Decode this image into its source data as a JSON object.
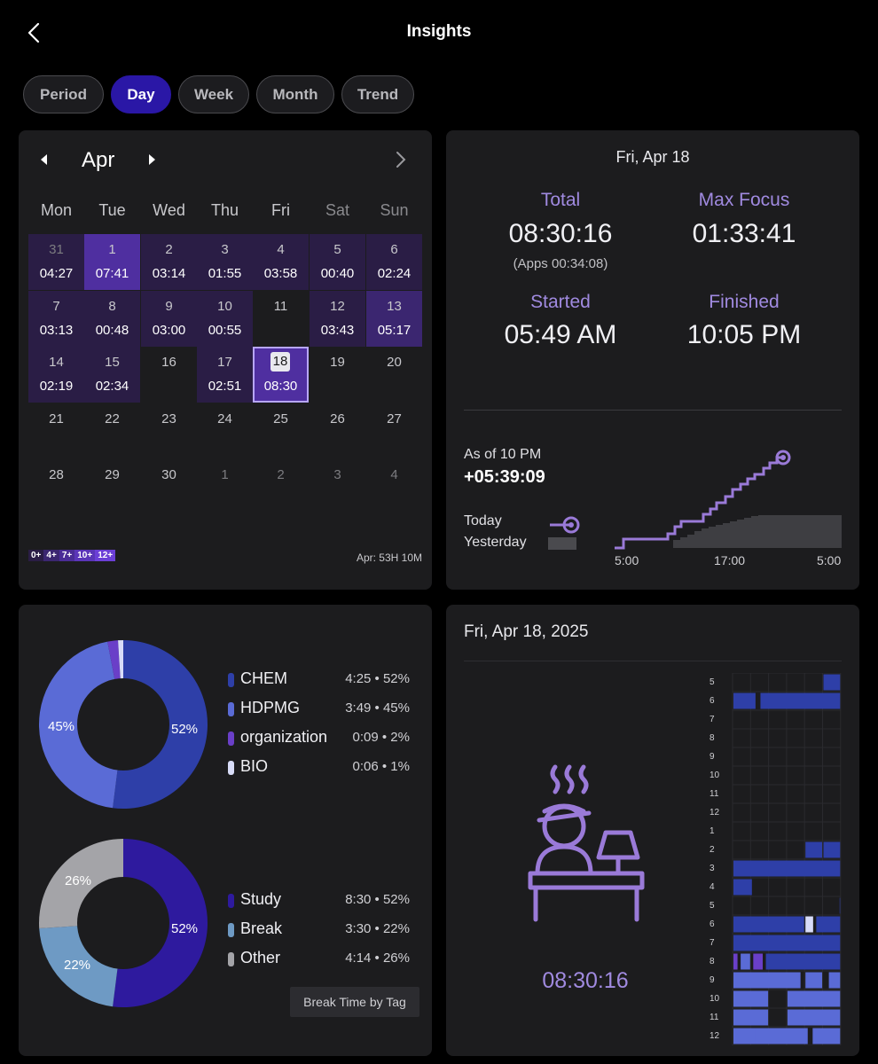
{
  "header": {
    "title": "Insights",
    "back_icon": "chevron-left-icon"
  },
  "tabs": [
    {
      "label": "Period",
      "active": false
    },
    {
      "label": "Day",
      "active": true
    },
    {
      "label": "Week",
      "active": false
    },
    {
      "label": "Month",
      "active": false
    },
    {
      "label": "Trend",
      "active": false
    }
  ],
  "calendar": {
    "month": "Apr",
    "weekdays": [
      "Mon",
      "Tue",
      "Wed",
      "Thu",
      "Fri",
      "Sat",
      "Sun"
    ],
    "days": [
      {
        "d": "31",
        "t": "04:27",
        "lvl": 1,
        "dim": true
      },
      {
        "d": "1",
        "t": "07:41",
        "lvl": 3
      },
      {
        "d": "2",
        "t": "03:14",
        "lvl": 1
      },
      {
        "d": "3",
        "t": "01:55",
        "lvl": 1
      },
      {
        "d": "4",
        "t": "03:58",
        "lvl": 1
      },
      {
        "d": "5",
        "t": "00:40",
        "lvl": 1
      },
      {
        "d": "6",
        "t": "02:24",
        "lvl": 1
      },
      {
        "d": "7",
        "t": "03:13",
        "lvl": 1
      },
      {
        "d": "8",
        "t": "00:48",
        "lvl": 1
      },
      {
        "d": "9",
        "t": "03:00",
        "lvl": 1
      },
      {
        "d": "10",
        "t": "00:55",
        "lvl": 1
      },
      {
        "d": "11",
        "t": "",
        "lvl": 0
      },
      {
        "d": "12",
        "t": "03:43",
        "lvl": 1
      },
      {
        "d": "13",
        "t": "05:17",
        "lvl": 2
      },
      {
        "d": "14",
        "t": "02:19",
        "lvl": 1
      },
      {
        "d": "15",
        "t": "02:34",
        "lvl": 1
      },
      {
        "d": "16",
        "t": "",
        "lvl": 0
      },
      {
        "d": "17",
        "t": "02:51",
        "lvl": 1
      },
      {
        "d": "18",
        "t": "08:30",
        "lvl": 3,
        "selected": true
      },
      {
        "d": "19",
        "t": "",
        "lvl": 0
      },
      {
        "d": "20",
        "t": "",
        "lvl": 0
      },
      {
        "d": "21",
        "t": "",
        "lvl": 0
      },
      {
        "d": "22",
        "t": "",
        "lvl": 0
      },
      {
        "d": "23",
        "t": "",
        "lvl": 0
      },
      {
        "d": "24",
        "t": "",
        "lvl": 0
      },
      {
        "d": "25",
        "t": "",
        "lvl": 0
      },
      {
        "d": "26",
        "t": "",
        "lvl": 0
      },
      {
        "d": "27",
        "t": "",
        "lvl": 0
      },
      {
        "d": "28",
        "t": "",
        "lvl": 0
      },
      {
        "d": "29",
        "t": "",
        "lvl": 0
      },
      {
        "d": "30",
        "t": "",
        "lvl": 0
      },
      {
        "d": "1",
        "t": "",
        "lvl": 0,
        "dim": true
      },
      {
        "d": "2",
        "t": "",
        "lvl": 0,
        "dim": true
      },
      {
        "d": "3",
        "t": "",
        "lvl": 0,
        "dim": true
      },
      {
        "d": "4",
        "t": "",
        "lvl": 0,
        "dim": true
      }
    ],
    "level_colors": [
      "transparent",
      "#2a1d45",
      "#3b2670",
      "#4f2fa0"
    ],
    "scale": [
      {
        "label": "0+",
        "color": "#2a1d45"
      },
      {
        "label": "4+",
        "color": "#3b2670"
      },
      {
        "label": "7+",
        "color": "#4a2c96"
      },
      {
        "label": "10+",
        "color": "#5a35b8"
      },
      {
        "label": "12+",
        "color": "#6b3fd6"
      }
    ],
    "month_total": "Apr: 53H 10M"
  },
  "summary": {
    "date": "Fri, Apr 18",
    "total_label": "Total",
    "total_value": "08:30:16",
    "apps_value": "(Apps 00:34:08)",
    "max_focus_label": "Max Focus",
    "max_focus_value": "01:33:41",
    "started_label": "Started",
    "started_value": "05:49 AM",
    "finished_label": "Finished",
    "finished_value": "10:05 PM",
    "as_of_label": "As of 10 PM",
    "as_of_value": "+05:39:09",
    "today_label": "Today",
    "yesterday_label": "Yesterday",
    "x_ticks": [
      "5:00",
      "17:00",
      "5:00"
    ]
  },
  "breakdown": {
    "tags": [
      {
        "name": "CHEM",
        "value": "4:25 • 52%",
        "pct": 52,
        "color": "#2e3fa8"
      },
      {
        "name": "HDPMG",
        "value": "3:49 • 45%",
        "pct": 45,
        "color": "#5a6bd6"
      },
      {
        "name": "organization",
        "value": "0:09 • 2%",
        "pct": 2,
        "color": "#6a3fc8"
      },
      {
        "name": "BIO",
        "value": "0:06 • 1%",
        "pct": 1,
        "color": "#d8dcf8"
      }
    ],
    "tag_pie_labels": [
      "52%",
      "45%"
    ],
    "types": [
      {
        "name": "Study",
        "value": "8:30 • 52%",
        "pct": 52,
        "color": "#2e1a9e"
      },
      {
        "name": "Break",
        "value": "3:30 • 22%",
        "pct": 22,
        "color": "#6e9ac4"
      },
      {
        "name": "Other",
        "value": "4:14 • 26%",
        "pct": 26,
        "color": "#a4a4a8"
      }
    ],
    "type_pie_labels": [
      "52%",
      "22%",
      "26%"
    ],
    "break_button": "Break Time by Tag"
  },
  "timeline": {
    "date": "Fri, Apr 18, 2025",
    "illustration_icon": "studying-person-lamp-icon",
    "total": "08:30:16",
    "hours": [
      "5",
      "6",
      "7",
      "8",
      "9",
      "10",
      "11",
      "12",
      "1",
      "2",
      "3",
      "4",
      "5",
      "6",
      "7",
      "8",
      "9",
      "10",
      "11",
      "12"
    ]
  }
}
